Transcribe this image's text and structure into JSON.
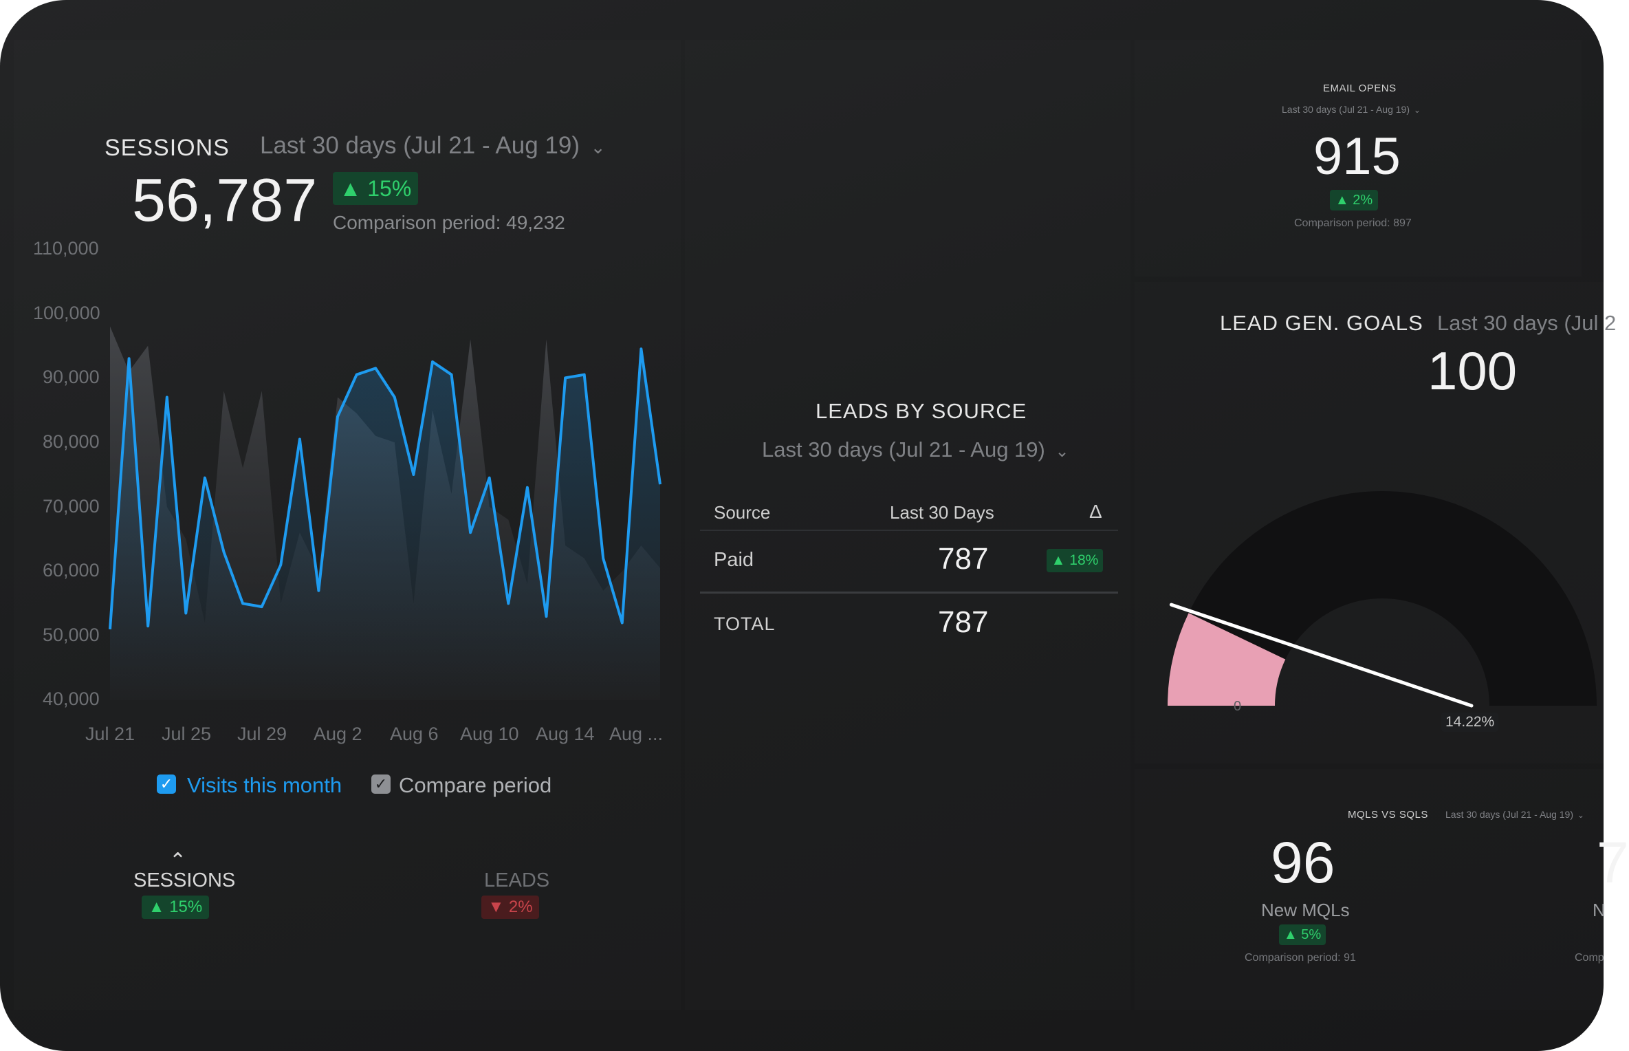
{
  "sessions": {
    "title": "SESSIONS",
    "date_range": "Last 30 days (Jul 21 - Aug 19)",
    "value": "56,787",
    "change": "▲ 15%",
    "comparison": "Comparison period: 49,232",
    "y_ticks": [
      "110,000",
      "100,000",
      "90,000",
      "80,000",
      "70,000",
      "60,000",
      "50,000",
      "40,000"
    ],
    "x_ticks": [
      "Jul 21",
      "Jul 25",
      "Jul 29",
      "Aug 2",
      "Aug 6",
      "Aug 10",
      "Aug 14",
      "Aug ..."
    ],
    "legend": {
      "visits": "Visits this month",
      "compare": "Compare period"
    },
    "tabs": [
      {
        "label": "SESSIONS",
        "change": "▲ 15%"
      },
      {
        "label": "LEADS",
        "change": "▼ 2%"
      }
    ]
  },
  "chart_data": {
    "type": "line",
    "ylim": [
      40000,
      110000
    ],
    "x_labels": [
      "Jul 21",
      "Jul 25",
      "Jul 29",
      "Aug 2",
      "Aug 6",
      "Aug 10",
      "Aug 14",
      "Aug ..."
    ],
    "series": [
      {
        "name": "Visits this month",
        "color": "#1e9bf0",
        "values": [
          51000,
          93000,
          51500,
          87000,
          53500,
          74500,
          63000,
          55000,
          54500,
          61000,
          80500,
          57000,
          84000,
          90500,
          91500,
          87000,
          75000,
          92500,
          90500,
          66000,
          74500,
          55000,
          73000,
          53000,
          90000,
          90500,
          62000,
          52000,
          94500,
          73500
        ]
      },
      {
        "name": "Compare period",
        "color": "#4a4c50",
        "values": [
          98000,
          91000,
          95000,
          70000,
          65000,
          52000,
          88000,
          76000,
          88000,
          55000,
          66000,
          60000,
          87000,
          84500,
          81000,
          80000,
          55000,
          85000,
          72000,
          96000,
          70000,
          68000,
          58000,
          96000,
          64000,
          62000,
          57000,
          60000,
          64000,
          60500
        ]
      }
    ]
  },
  "leads": {
    "title": "LEADS BY SOURCE",
    "date_range": "Last 30 days (Jul 21 - Aug 19)",
    "headers": {
      "source": "Source",
      "period": "Last 30 Days",
      "delta": "Δ"
    },
    "rows": [
      {
        "source": "Paid",
        "value": "787",
        "change": "▲ 18%"
      }
    ],
    "total": {
      "label": "TOTAL",
      "value": "787"
    }
  },
  "email": {
    "title": "EMAIL OPENS",
    "date_range": "Last 30 days (Jul 21 - Aug 19)",
    "value": "915",
    "change": "▲ 2%",
    "comparison": "Comparison period: 897"
  },
  "goals": {
    "title": "LEAD GEN. GOALS",
    "date_range": "Last 30 days (Jul 2",
    "value": "100",
    "gauge_min_label": "0",
    "gauge_value_label": "14.22%",
    "gauge_fraction": 0.1422,
    "gauge_color": "#e8a0b4"
  },
  "mqls": {
    "title": "MQLS VS SQLS",
    "date_range": "Last 30 days (Jul 21 - Aug 19)",
    "value": "96",
    "label": "New MQLs",
    "change": "▲ 5%",
    "comparison": "Comparison period: 91",
    "cut_value": "7",
    "cut_label": "N",
    "cut_comparison": "Comp"
  }
}
